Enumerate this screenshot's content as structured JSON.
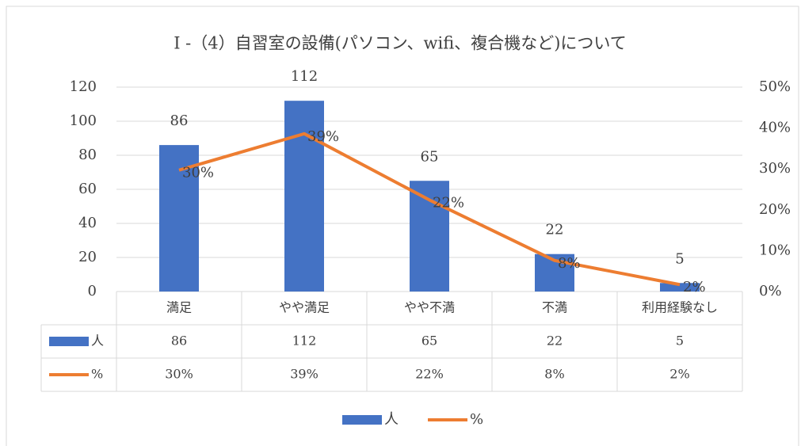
{
  "chart_data": {
    "type": "bar-line",
    "title": "I -（4）自習室の設備(パソコン、wifi、複合機など)について",
    "categories": [
      "満足",
      "やや満足",
      "やや不満",
      "不満",
      "利用経験なし"
    ],
    "series": [
      {
        "name": "人",
        "type": "bar",
        "color": "#4472c4",
        "values": [
          86,
          112,
          65,
          22,
          5
        ]
      },
      {
        "name": "%",
        "type": "line",
        "axis": "y2",
        "color": "#ed7d31",
        "values": [
          29.7,
          38.6,
          22.4,
          7.6,
          1.7
        ],
        "value_labels": [
          "30%",
          "39%",
          "22%",
          "8%",
          "2%"
        ]
      }
    ],
    "ylim": [
      0,
      120
    ],
    "yticks": [
      0,
      20,
      40,
      60,
      80,
      100,
      120
    ],
    "y2lim": [
      0,
      50
    ],
    "y2ticks": [
      {
        "value": 0,
        "label": "0%"
      },
      {
        "value": 10,
        "label": "10%"
      },
      {
        "value": 20,
        "label": "20%"
      },
      {
        "value": 30,
        "label": "30%"
      },
      {
        "value": 40,
        "label": "40%"
      },
      {
        "value": 50,
        "label": "50%"
      }
    ],
    "grid": true,
    "legend": "bottom",
    "data_table": true
  }
}
